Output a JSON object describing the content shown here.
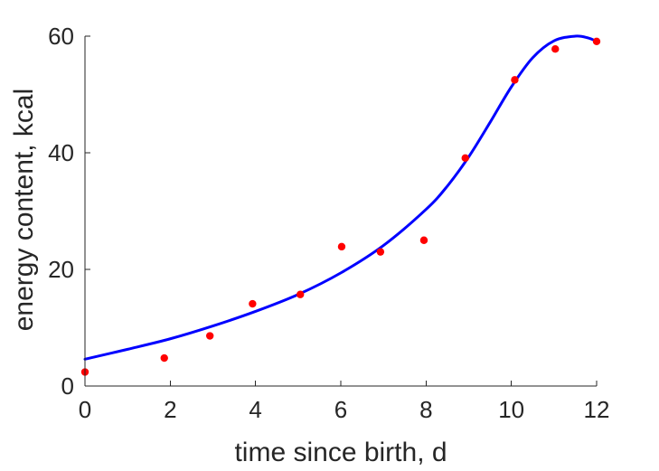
{
  "chart_data": {
    "type": "scatter",
    "title": "",
    "xlabel": "time since birth, d",
    "ylabel": "energy content, kcal",
    "xlim": [
      0,
      12
    ],
    "ylim": [
      0,
      60
    ],
    "xticks": [
      0,
      2,
      4,
      6,
      8,
      10,
      12
    ],
    "yticks": [
      0,
      20,
      40,
      60
    ],
    "grid": false,
    "series": [
      {
        "kind": "scatter",
        "color": "#ff0000",
        "x": [
          0.0,
          1.86,
          2.93,
          3.93,
          5.05,
          6.02,
          6.93,
          7.95,
          8.92,
          10.08,
          11.03,
          12.0
        ],
        "y": [
          2.4,
          4.8,
          8.6,
          14.1,
          15.7,
          23.9,
          23.0,
          25.0,
          39.1,
          52.5,
          57.8,
          59.1
        ]
      },
      {
        "kind": "line",
        "color": "#0000ff",
        "x": [
          0,
          1,
          2,
          3,
          4,
          5,
          6,
          7,
          8,
          8.5,
          9,
          9.5,
          10,
          10.5,
          11,
          11.5,
          11.8,
          12
        ],
        "y": [
          4.6,
          6.3,
          8.1,
          10.3,
          12.8,
          15.7,
          19.4,
          24.1,
          30.3,
          34.3,
          39.3,
          45.2,
          51.3,
          56.3,
          59.2,
          60.0,
          59.7,
          59.1
        ]
      }
    ]
  }
}
